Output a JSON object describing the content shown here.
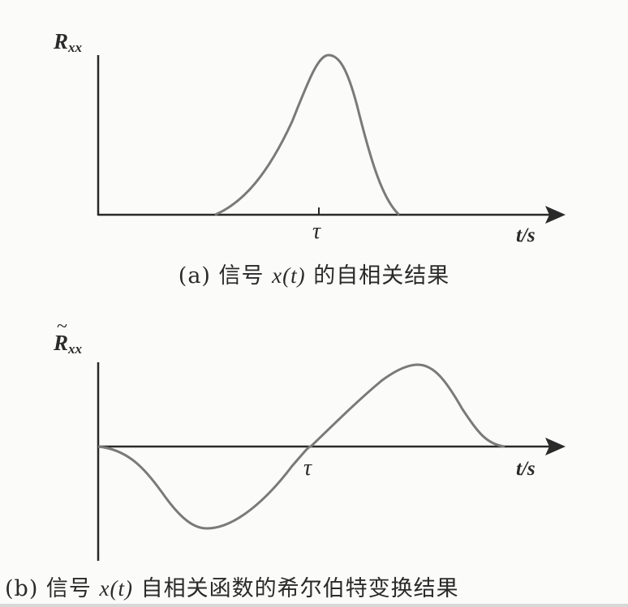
{
  "panel_a": {
    "y_label_main": "R",
    "y_label_sub": "xx",
    "tau_label": "τ",
    "x_label": "t/s",
    "caption_prefix": "(a)  信号 ",
    "caption_var": "x(t)",
    "caption_suffix": " 的自相关结果"
  },
  "panel_b": {
    "y_label_main": "R",
    "y_label_tilde": "~",
    "y_label_sub": "xx",
    "tau_label": "τ",
    "x_label": "t/s",
    "caption_prefix": "(b)  信号 ",
    "caption_var": "x(t)",
    "caption_suffix": " 自相关函数的希尔伯特变换结果"
  },
  "colors": {
    "curve": "#7a7a78",
    "axis": "#2a2a2a",
    "background": "#fbfbf9"
  }
}
